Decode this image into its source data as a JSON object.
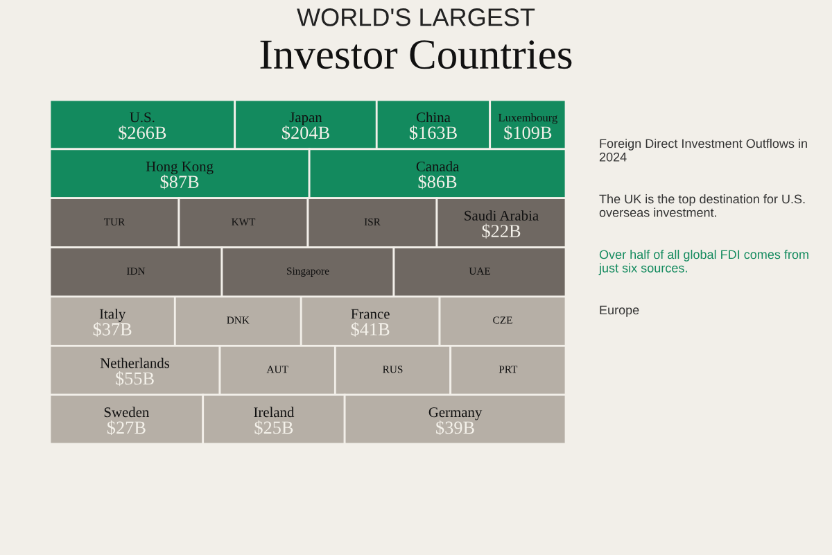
{
  "chart_data": {
    "type": "other",
    "title": "WORLD'S LARGEST",
    "subtitle": "Investor Countries",
    "categories": [
      "U.S.",
      "Japan",
      "China",
      "Luxembourg",
      "Hong Kong",
      "Canada",
      "TUR",
      "KWT",
      "ISR",
      "Saudi Arabia",
      "IDN",
      "Singapore",
      "UAE",
      "Italy",
      "DNK",
      "France",
      "CZE",
      "Netherlands",
      "AUT",
      "RUS",
      "PRT",
      "Sweden",
      "Ireland",
      "Germany"
    ],
    "values": [
      266,
      204,
      163,
      109,
      87,
      86,
      null,
      null,
      null,
      22,
      null,
      null,
      null,
      37,
      null,
      41,
      null,
      55,
      null,
      null,
      null,
      27,
      25,
      39
    ],
    "value_labels": [
      "$266B",
      "$204B",
      "$163B",
      "$109B",
      "$87B",
      "$86B",
      null,
      null,
      null,
      "$22B",
      null,
      null,
      null,
      "$37B",
      null,
      "$41B",
      null,
      "$55B",
      null,
      null,
      null,
      "$27B",
      "$25B",
      "$39B"
    ],
    "colors": [
      "#138a5e",
      "#138a5e",
      "#138a5e",
      "#138a5e",
      "#138a5e",
      "#138a5e",
      "#6f6862",
      "#6f6862",
      "#6f6862",
      "#6f6862",
      "#6f6862",
      "#6f6862",
      "#6f6862",
      "#b6afa6",
      "#b6afa6",
      "#b6afa6",
      "#b6afa6",
      "#b6afa6",
      "#b6afa6",
      "#b6afa6",
      "#b6afa6",
      "#b6afa6",
      "#b6afa6",
      "#b6afa6"
    ],
    "annotations": [
      "Foreign Direct Investment Outflows in 2024",
      "The UK is the top destination for U.S. overseas investment.",
      "Over half of all global FDI comes from just six sources.",
      "Europe"
    ]
  }
}
